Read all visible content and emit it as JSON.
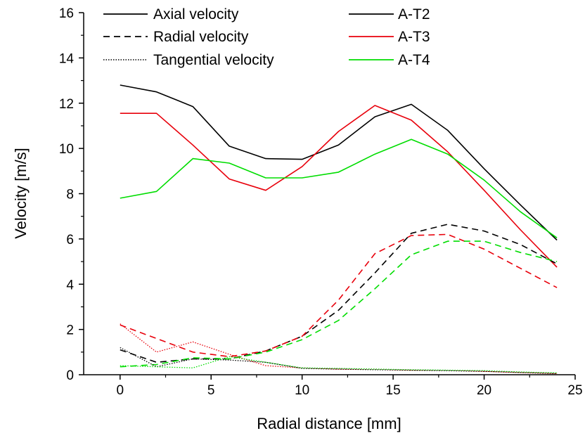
{
  "chart_data": {
    "type": "line",
    "xlabel": "Radial distance [mm]",
    "ylabel": "Velocity [m/s]",
    "xlim": [
      -2,
      25
    ],
    "ylim": [
      0,
      16
    ],
    "xticks": [
      0,
      5,
      10,
      15,
      20,
      25
    ],
    "yticks": [
      0,
      2,
      4,
      6,
      8,
      10,
      12,
      14,
      16
    ],
    "x": [
      0,
      2,
      4,
      6,
      8,
      10,
      12,
      14,
      16,
      18,
      20,
      22,
      24
    ],
    "legend_components": [
      {
        "name": "Axial velocity",
        "style": "solid"
      },
      {
        "name": "Radial velocity",
        "style": "dashed"
      },
      {
        "name": "Tangential velocity",
        "style": "dotted"
      }
    ],
    "legend_cases": [
      {
        "name": "A-T2",
        "color": "#000000"
      },
      {
        "name": "A-T3",
        "color": "#e8000b"
      },
      {
        "name": "A-T4",
        "color": "#00dd00"
      }
    ],
    "series": [
      {
        "case": "A-T2",
        "component": "Axial velocity",
        "color": "#000000",
        "style": "solid",
        "values": [
          12.8,
          12.5,
          11.85,
          10.1,
          9.55,
          9.52,
          10.15,
          11.4,
          11.95,
          10.8,
          9.1,
          7.5,
          5.95
        ]
      },
      {
        "case": "A-T3",
        "component": "Axial velocity",
        "color": "#e8000b",
        "style": "solid",
        "values": [
          11.55,
          11.55,
          10.15,
          8.65,
          8.15,
          9.2,
          10.75,
          11.9,
          11.25,
          9.85,
          8.15,
          6.4,
          4.75
        ]
      },
      {
        "case": "A-T4",
        "component": "Axial velocity",
        "color": "#00dd00",
        "style": "solid",
        "values": [
          7.8,
          8.1,
          9.55,
          9.35,
          8.7,
          8.7,
          8.95,
          9.75,
          10.4,
          9.75,
          8.6,
          7.2,
          6.05
        ]
      },
      {
        "case": "A-T2",
        "component": "Radial velocity",
        "color": "#000000",
        "style": "dashed",
        "values": [
          1.1,
          0.55,
          0.7,
          0.7,
          1.05,
          1.7,
          2.85,
          4.5,
          6.25,
          6.65,
          6.35,
          5.75,
          4.9
        ]
      },
      {
        "case": "A-T3",
        "component": "Radial velocity",
        "color": "#e8000b",
        "style": "dashed",
        "values": [
          2.2,
          1.6,
          1.0,
          0.8,
          1.05,
          1.7,
          3.3,
          5.35,
          6.15,
          6.2,
          5.55,
          4.7,
          3.85
        ]
      },
      {
        "case": "A-T4",
        "component": "Radial velocity",
        "color": "#00dd00",
        "style": "dashed",
        "values": [
          0.35,
          0.45,
          0.75,
          0.7,
          1.0,
          1.55,
          2.4,
          3.8,
          5.3,
          5.9,
          5.9,
          5.4,
          5.0
        ]
      },
      {
        "case": "A-T2",
        "component": "Tangential velocity",
        "color": "#000000",
        "style": "dotted",
        "values": [
          1.2,
          0.35,
          0.7,
          0.65,
          0.55,
          0.28,
          0.25,
          0.22,
          0.2,
          0.18,
          0.15,
          0.1,
          0.05
        ]
      },
      {
        "case": "A-T3",
        "component": "Tangential velocity",
        "color": "#e8000b",
        "style": "dotted",
        "values": [
          2.25,
          1.0,
          1.45,
          0.9,
          0.4,
          0.3,
          0.25,
          0.25,
          0.2,
          0.2,
          0.15,
          0.1,
          0.05
        ]
      },
      {
        "case": "A-T4",
        "component": "Tangential velocity",
        "color": "#00dd00",
        "style": "dotted",
        "values": [
          0.4,
          0.35,
          0.3,
          0.8,
          0.55,
          0.3,
          0.28,
          0.25,
          0.22,
          0.2,
          0.18,
          0.12,
          0.08
        ]
      }
    ]
  }
}
